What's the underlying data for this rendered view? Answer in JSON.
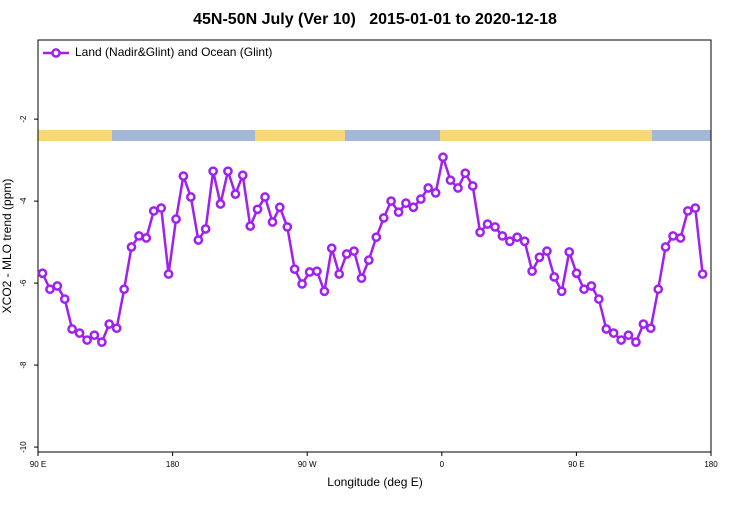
{
  "chart_data": {
    "type": "line",
    "title": "45N-50N July (Ver 10)   2015-01-01 to 2020-12-18",
    "xlabel": "Longitude (deg E)",
    "ylabel": "XCO2 - MLO trend (ppm)",
    "xlim": [
      90,
      540
    ],
    "ylim": [
      -10.12,
      -0.07
    ],
    "xticks": [
      {
        "value": 90,
        "label": "90 E"
      },
      180,
      {
        "value": 270,
        "label": "90 W"
      },
      {
        "value": 360,
        "label": "0"
      },
      {
        "value": 450,
        "label": "90 E"
      },
      {
        "value": 540,
        "label": "180"
      }
    ],
    "yticks": [
      -2,
      -4,
      -6,
      -8,
      -10
    ],
    "legend": "top-left",
    "x": [
      93.0,
      98.0,
      102.9,
      107.9,
      112.8,
      117.8,
      122.8,
      127.7,
      132.7,
      137.6,
      142.6,
      147.6,
      152.5,
      157.5,
      162.4,
      167.4,
      172.4,
      177.3,
      182.3,
      187.2,
      192.2,
      197.2,
      202.1,
      207.1,
      212.0,
      217.0,
      222.0,
      226.9,
      231.9,
      236.8,
      241.8,
      246.8,
      251.7,
      256.7,
      261.6,
      266.6,
      271.6,
      276.5,
      281.5,
      286.4,
      291.4,
      296.4,
      301.3,
      306.3,
      311.2,
      316.2,
      321.2,
      326.1,
      331.1,
      336.0,
      341.0,
      346.0,
      350.9,
      355.9,
      360.8,
      365.8,
      370.8,
      375.7,
      380.7,
      385.6,
      390.6,
      395.6,
      400.5,
      405.5,
      410.4,
      415.4,
      420.4,
      425.3,
      430.3,
      435.2,
      440.2,
      445.2,
      450.1,
      455.1,
      460.0,
      465.0,
      470.0,
      474.9,
      479.9,
      484.8,
      489.8,
      494.8,
      499.7,
      504.7,
      509.6,
      514.6,
      519.6,
      524.5,
      529.5,
      534.4
    ],
    "series": [
      {
        "name": "Land (Nadir&Glint) and Ocean (Glint)",
        "color": "#a020f0",
        "values": [
          -5.76,
          -6.15,
          -6.07,
          -6.39,
          -7.12,
          -7.22,
          -7.39,
          -7.27,
          -7.44,
          -7.0,
          -7.1,
          -6.15,
          -5.12,
          -4.85,
          -4.9,
          -4.24,
          -4.17,
          -5.78,
          -4.44,
          -3.39,
          -3.9,
          -4.95,
          -4.68,
          -3.27,
          -4.07,
          -3.27,
          -3.83,
          -3.37,
          -4.61,
          -4.2,
          -3.9,
          -4.51,
          -4.15,
          -4.63,
          -5.66,
          -6.02,
          -5.73,
          -5.71,
          -6.2,
          -5.15,
          -5.78,
          -5.29,
          -5.22,
          -5.88,
          -5.44,
          -4.88,
          -4.41,
          -4.0,
          -4.27,
          -4.05,
          -4.15,
          -3.95,
          -3.68,
          -3.8,
          -2.93,
          -3.49,
          -3.68,
          -3.32,
          -3.63,
          -4.76,
          -4.56,
          -4.63,
          -4.85,
          -4.98,
          -4.88,
          -4.98,
          -5.71,
          -5.37,
          -5.22,
          -5.85,
          -6.2,
          -5.24,
          -5.76,
          -6.15,
          -6.07,
          -6.39,
          -7.12,
          -7.22,
          -7.39,
          -7.27,
          -7.44,
          -7.0,
          -7.1,
          -6.15,
          -5.12,
          -4.85,
          -4.9,
          -4.24,
          -4.17,
          -5.78
        ]
      }
    ]
  }
}
